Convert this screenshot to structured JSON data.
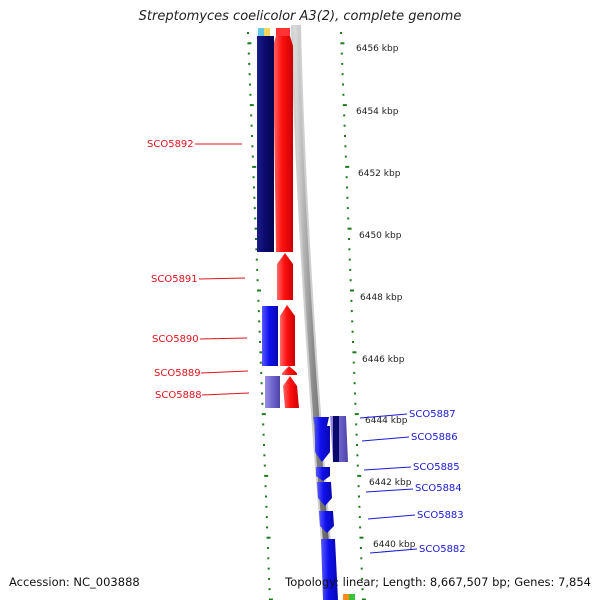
{
  "title": "Streptomyces coelicolor A3(2), complete genome",
  "footer": {
    "accession": "Accession: NC_003888",
    "topology": "Topology: linear; Length: 8,667,507 bp; Genes: 7,854"
  },
  "colors": {
    "forward_strand": "#ee1a1a",
    "reverse_strand": "#1a1ad6",
    "axis_ticks": "#1f7a1f",
    "backbone": "#7a7a7a"
  },
  "scale_labels": [
    "6456 kbp",
    "6454 kbp",
    "6452 kbp",
    "6450 kbp",
    "6448 kbp",
    "6446 kbp",
    "6444 kbp",
    "6442 kbp",
    "6440 kbp"
  ],
  "genes": [
    {
      "id": "SCO5892",
      "strand": "forward"
    },
    {
      "id": "SCO5891",
      "strand": "forward"
    },
    {
      "id": "SCO5890",
      "strand": "forward"
    },
    {
      "id": "SCO5889",
      "strand": "forward"
    },
    {
      "id": "SCO5888",
      "strand": "forward"
    },
    {
      "id": "SCO5887",
      "strand": "reverse"
    },
    {
      "id": "SCO5886",
      "strand": "reverse"
    },
    {
      "id": "SCO5885",
      "strand": "reverse"
    },
    {
      "id": "SCO5884",
      "strand": "reverse"
    },
    {
      "id": "SCO5883",
      "strand": "reverse"
    },
    {
      "id": "SCO5882",
      "strand": "reverse"
    }
  ]
}
